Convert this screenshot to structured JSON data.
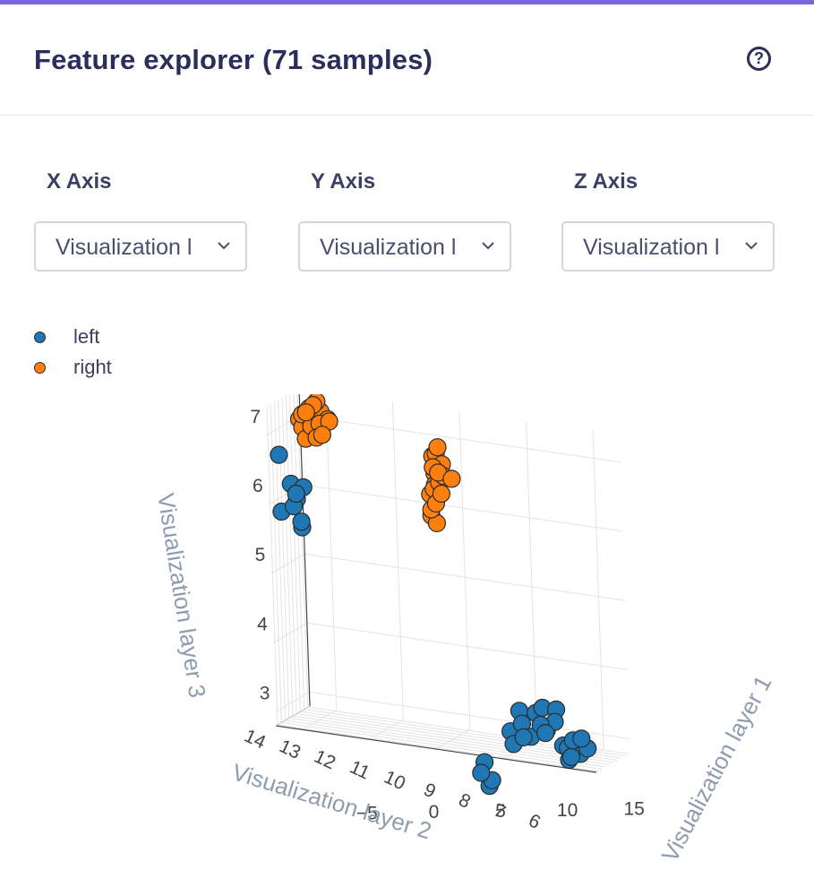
{
  "panel": {
    "title": "Feature explorer (71 samples)",
    "help_icon": "help-circle-icon",
    "help_glyph": "?"
  },
  "controls": {
    "x_axis": {
      "label": "X Axis",
      "value": "Visualization l"
    },
    "y_axis": {
      "label": "Y Axis",
      "value": "Visualization l"
    },
    "z_axis": {
      "label": "Z Axis",
      "value": "Visualization l"
    },
    "chevron_icon": "chevron-down-icon"
  },
  "colors": {
    "accent": "#7b68d9",
    "left": "#1f77b4",
    "right": "#ff7f0e",
    "text": "#2b2d5a"
  },
  "chart_data": {
    "type": "scatter",
    "title": "",
    "xlabel": "Visualization layer 1",
    "ylabel": "Visualization layer 2",
    "zlabel": "Visualization layer 3",
    "x_ticks": [
      "−5",
      "0",
      "5",
      "10",
      "15"
    ],
    "y_ticks": [
      "6",
      "7",
      "8",
      "9",
      "10",
      "11",
      "12",
      "13",
      "14"
    ],
    "z_ticks": [
      "3",
      "4",
      "5",
      "6",
      "7"
    ],
    "xlim": [
      -7,
      17
    ],
    "ylim": [
      5.5,
      14.5
    ],
    "zlim": [
      2.8,
      7.4
    ],
    "grid": true,
    "legend_placement": "top-left",
    "series": [
      {
        "name": "left",
        "color": "#1f77b4",
        "points": [
          [
            12.6,
            8.2,
            3.2
          ],
          [
            13.3,
            7.9,
            3.35
          ],
          [
            11.6,
            7.5,
            3.1
          ],
          [
            12.4,
            7.3,
            3.3
          ],
          [
            13.7,
            8.5,
            3.0
          ],
          [
            10.8,
            8.0,
            3.25
          ],
          [
            11.6,
            8.9,
            3.4
          ],
          [
            12.2,
            8.6,
            3.5
          ],
          [
            10.2,
            7.7,
            2.95
          ],
          [
            11.2,
            6.9,
            3.1
          ],
          [
            9.8,
            8.4,
            3.1
          ],
          [
            12.8,
            7.1,
            3.2
          ],
          [
            13.2,
            8.7,
            3.5
          ],
          [
            10.4,
            8.8,
            3.4
          ],
          [
            15.0,
            6.0,
            2.95
          ],
          [
            15.6,
            6.4,
            3.0
          ],
          [
            16.2,
            6.2,
            3.1
          ],
          [
            14.6,
            6.6,
            3.05
          ],
          [
            15.2,
            5.9,
            3.2
          ],
          [
            15.9,
            5.7,
            3.25
          ],
          [
            14.8,
            6.1,
            2.9
          ],
          [
            7.8,
            8.3,
            2.6
          ],
          [
            8.3,
            8.4,
            2.35
          ],
          [
            7.6,
            8.0,
            2.45
          ],
          [
            8.0,
            8.7,
            2.25
          ],
          [
            -5.1,
            6.4,
            6.1
          ],
          [
            -6.2,
            6.1,
            5.9
          ],
          [
            -4.5,
            6.1,
            6.3
          ],
          [
            -5.3,
            6.2,
            6.0
          ],
          [
            -4.8,
            6.5,
            5.7
          ],
          [
            -5.6,
            6.7,
            6.3
          ],
          [
            -5.0,
            5.9,
            6.2
          ],
          [
            -6.4,
            6.6,
            6.7
          ],
          [
            -4.7,
            6.0,
            5.8
          ]
        ]
      },
      {
        "name": "right",
        "color": "#ff7f0e",
        "points": [
          [
            3.0,
            14.0,
            6.55
          ],
          [
            3.5,
            13.8,
            6.35
          ],
          [
            2.7,
            14.1,
            6.15
          ],
          [
            3.2,
            14.2,
            6.75
          ],
          [
            3.8,
            13.9,
            6.45
          ],
          [
            2.9,
            13.6,
            5.95
          ],
          [
            3.4,
            14.0,
            6.85
          ],
          [
            3.1,
            13.7,
            6.25
          ],
          [
            3.6,
            14.3,
            6.6
          ],
          [
            2.8,
            13.9,
            5.85
          ],
          [
            3.3,
            13.5,
            6.05
          ],
          [
            3.0,
            14.4,
            6.45
          ],
          [
            4.6,
            13.3,
            6.45
          ],
          [
            3.7,
            13.6,
            6.2
          ],
          [
            3.2,
            13.9,
            5.75
          ],
          [
            2.9,
            14.3,
            6.7
          ],
          [
            3.5,
            13.6,
            6.5
          ],
          [
            3.1,
            14.1,
            6.3
          ],
          [
            -4.0,
            9.5,
            7.3
          ],
          [
            -3.2,
            8.9,
            7.2
          ],
          [
            -4.7,
            9.0,
            7.35
          ],
          [
            -5.2,
            8.8,
            7.25
          ],
          [
            -3.9,
            9.3,
            7.05
          ],
          [
            -4.5,
            8.7,
            7.1
          ],
          [
            -5.6,
            9.4,
            7.15
          ],
          [
            -3.7,
            8.7,
            7.0
          ],
          [
            -4.2,
            9.2,
            7.45
          ],
          [
            -5.0,
            9.6,
            7.0
          ],
          [
            -4.8,
            8.5,
            7.3
          ],
          [
            -3.5,
            9.6,
            7.2
          ],
          [
            -4.1,
            8.6,
            6.95
          ],
          [
            -5.3,
            9.1,
            7.05
          ],
          [
            -4.4,
            9.0,
            7.4
          ],
          [
            -3.9,
            8.8,
            7.15
          ],
          [
            -5.0,
            8.9,
            6.9
          ],
          [
            -4.6,
            9.7,
            7.25
          ],
          [
            -4.3,
            9.4,
            7.1
          ]
        ]
      }
    ]
  }
}
